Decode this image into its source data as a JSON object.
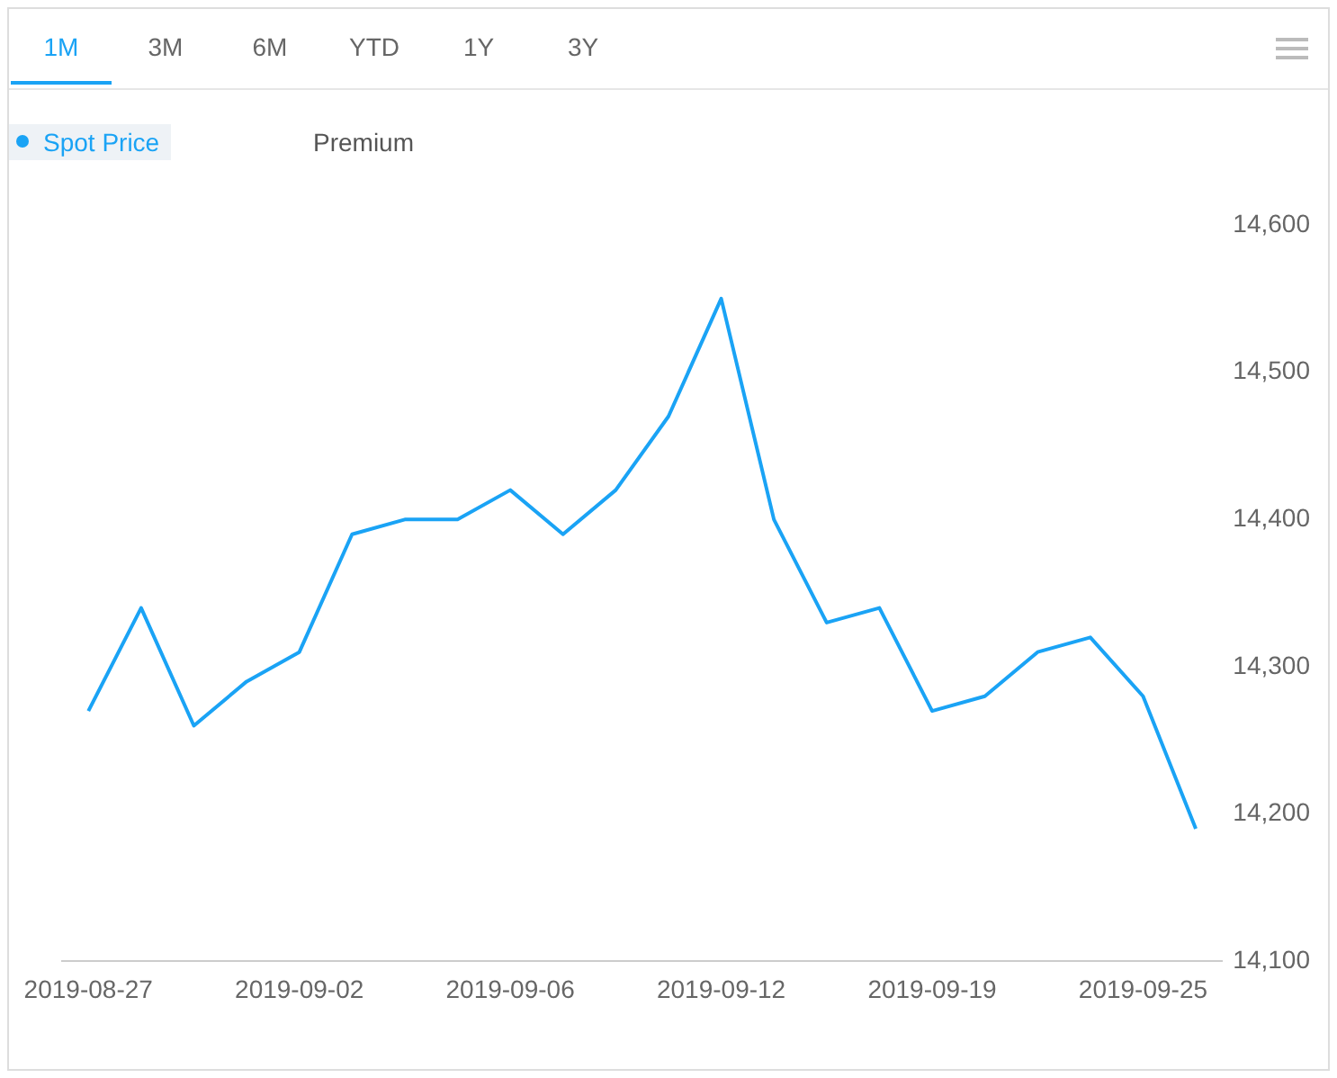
{
  "chart_data": {
    "type": "line",
    "annotations": [
      "1M",
      "3M",
      "6M",
      "YTD",
      "1Y",
      "3Y"
    ],
    "categories": [
      "2019-08-27",
      null,
      null,
      null,
      "2019-09-02",
      null,
      null,
      null,
      "2019-09-06",
      null,
      null,
      null,
      "2019-09-12",
      null,
      null,
      null,
      "2019-09-19",
      null,
      null,
      null,
      "2019-09-25",
      null
    ],
    "series": [
      {
        "name": "Spot Price",
        "color": "#1aa3f5",
        "values": [
          14270,
          14340,
          14260,
          14290,
          14310,
          14390,
          14400,
          14400,
          14420,
          14390,
          14420,
          14470,
          14550,
          14400,
          14330,
          14340,
          14270,
          14280,
          14310,
          14320,
          14280,
          14190
        ]
      },
      {
        "name": "Premium",
        "color": "#555555",
        "values": [
          null,
          null,
          null,
          null,
          null,
          null,
          null,
          null,
          null,
          null,
          null,
          null,
          null,
          null,
          null,
          null,
          null,
          null,
          null,
          null,
          null,
          null
        ]
      }
    ],
    "ylim": [
      14100,
      14600
    ],
    "yticks": [
      {
        "value": 14100,
        "label": "14,100"
      },
      {
        "value": 14200,
        "label": "14,200"
      },
      {
        "value": 14300,
        "label": "14,300"
      },
      {
        "value": 14400,
        "label": "14,400"
      },
      {
        "value": 14500,
        "label": "14,500"
      },
      {
        "value": 14600,
        "label": "14,600"
      }
    ],
    "grid": false,
    "legend": "top left",
    "marker": "none",
    "line_style": "solid"
  }
}
